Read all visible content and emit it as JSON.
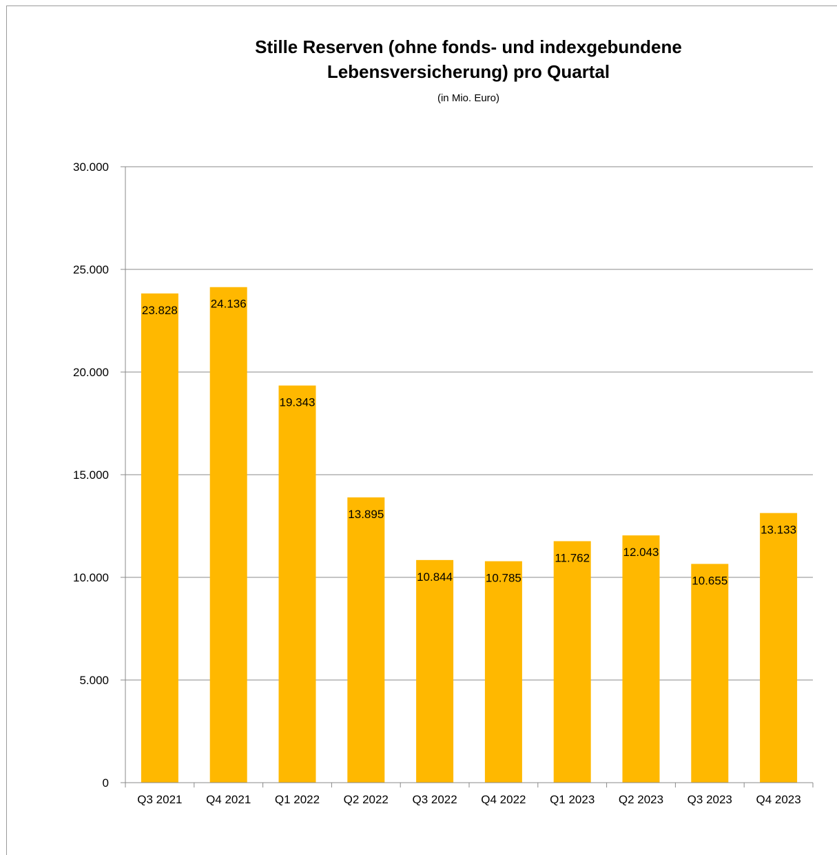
{
  "chart_data": {
    "type": "bar",
    "title_line1": "Stille Reserven (ohne fonds- und indexgebundene",
    "title_line2": "Lebensversicherung) pro Quartal",
    "subtitle": "(in Mio. Euro)",
    "xlabel": "",
    "ylabel": "",
    "ylim": [
      0,
      30000
    ],
    "yticks": [
      0,
      5000,
      10000,
      15000,
      20000,
      25000,
      30000
    ],
    "ytick_labels": [
      "0",
      "5.000",
      "10.000",
      "15.000",
      "20.000",
      "25.000",
      "30.000"
    ],
    "categories": [
      "Q3 2021",
      "Q4 2021",
      "Q1 2022",
      "Q2 2022",
      "Q3 2022",
      "Q4 2022",
      "Q1 2023",
      "Q2 2023",
      "Q3 2023",
      "Q4 2023"
    ],
    "values": [
      23828,
      24136,
      19343,
      13895,
      10844,
      10785,
      11762,
      12043,
      10655,
      13133
    ],
    "value_labels": [
      "23.828",
      "24.136",
      "19.343",
      "13.895",
      "10.844",
      "10.785",
      "11.762",
      "12.043",
      "10.655",
      "13.133"
    ],
    "grid": true,
    "legend": "none",
    "colors": {
      "bar": "#FFB800",
      "grid": "#888888",
      "axis": "#888888",
      "text": "#000000"
    }
  }
}
